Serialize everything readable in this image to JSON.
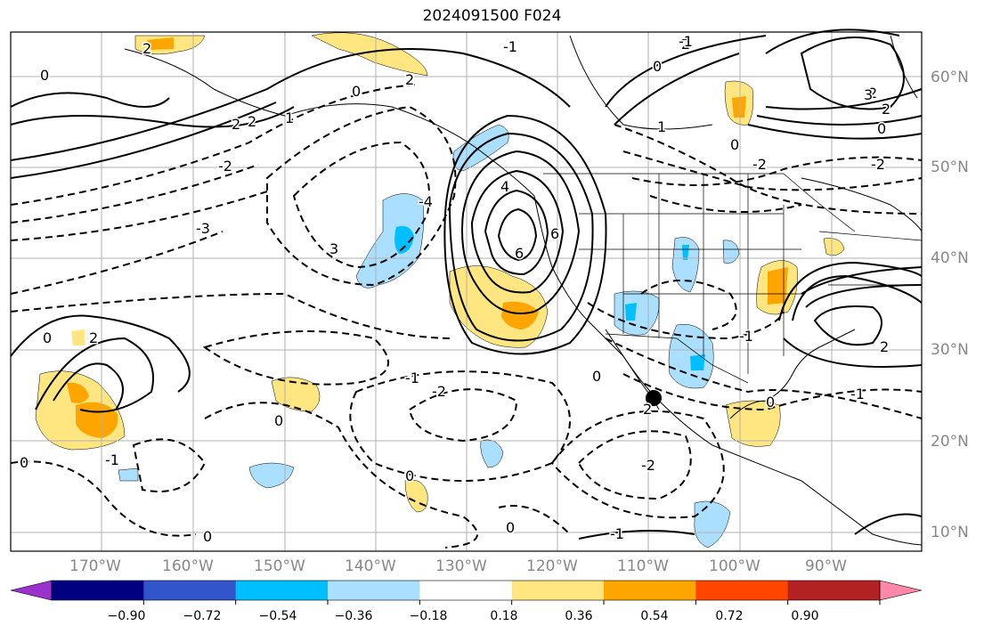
{
  "title": "2024091500 F024",
  "latitude_labels": [
    "60°N",
    "50°N",
    "40°N",
    "30°N",
    "20°N",
    "10°N"
  ],
  "longitude_labels": [
    "170°W",
    "160°W",
    "150°W",
    "140°W",
    "130°W",
    "120°W",
    "110°W",
    "100°W",
    "90°W"
  ],
  "contour_labels": [
    "0",
    "2",
    "-1",
    "2",
    "2",
    "2",
    "1",
    "0",
    "2",
    "-2",
    "-3",
    "3",
    "-4",
    "4",
    "6",
    "6",
    "0",
    "-1",
    "0",
    "1",
    "-2",
    "2",
    "3",
    "2",
    "0",
    "-1",
    "-1",
    "-2",
    "-2",
    "0",
    "2",
    "0",
    "2",
    "-1",
    "-2",
    "0",
    "-1",
    "0",
    "0",
    "0",
    "-1",
    "2",
    "0",
    "0"
  ],
  "colorbar": {
    "colors": [
      "#9933cc",
      "#000080",
      "#3355cc",
      "#00bfff",
      "#aadfff",
      "#ffffff",
      "#ffe680",
      "#ffa500",
      "#ff4500",
      "#b22222",
      "#ff88aa"
    ],
    "tick_labels": [
      "−0.90",
      "−0.72",
      "−0.54",
      "−0.36",
      "−0.18",
      "0.18",
      "0.36",
      "0.54",
      "0.72",
      "0.90"
    ]
  },
  "colors": {
    "frame": "#000000",
    "grid": "#b0b0b0",
    "coastline": "#000000",
    "tick_text": "#888888"
  }
}
